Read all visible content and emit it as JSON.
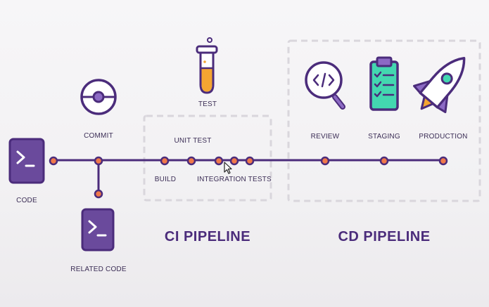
{
  "labels": {
    "code": "CODE",
    "commit": "COMMIT",
    "related_code": "RELATED CODE",
    "test": "TEST",
    "unit_test": "UNIT TEST",
    "build": "BUILD",
    "integration_tests": "INTEGRATION TESTS",
    "review": "REVIEW",
    "staging": "STAGING",
    "production": "PRODUCTION"
  },
  "sections": {
    "ci": "CI PIPELINE",
    "cd": "CD PIPELINE"
  },
  "colors": {
    "purple": "#6a4a9c",
    "dark_purple": "#4b2c7b",
    "orange": "#f0794a",
    "amber": "#f4a531",
    "teal": "#43d7b0",
    "dash": "#d6d3d9"
  },
  "icons": [
    "terminal-icon",
    "commit-icon",
    "test-tube-icon",
    "code-review-icon",
    "clipboard-checklist-icon",
    "rocket-icon"
  ]
}
